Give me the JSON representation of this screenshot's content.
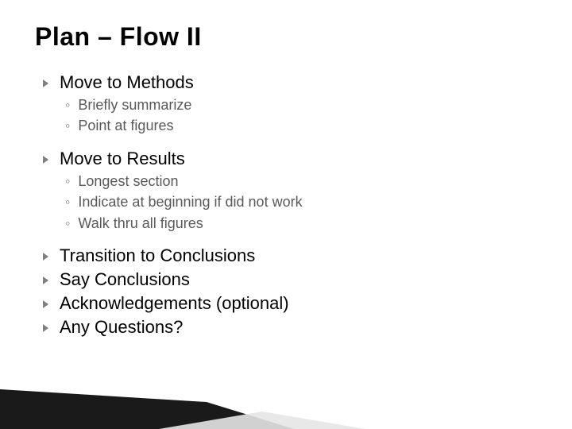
{
  "title": "Plan – Flow II",
  "items": [
    {
      "text": "Move to Methods",
      "subs": [
        "Briefly summarize",
        "Point at figures"
      ]
    },
    {
      "text": "Move to Results",
      "subs": [
        "Longest section",
        "Indicate at beginning if did not work",
        "Walk thru all figures"
      ]
    },
    {
      "text": "Transition to Conclusions",
      "subs": []
    },
    {
      "text": "Say Conclusions",
      "subs": []
    },
    {
      "text": "Acknowledgements (optional)",
      "subs": []
    },
    {
      "text": "Any Questions?",
      "subs": []
    }
  ],
  "style": {
    "title_fontsize": 32,
    "title_color": "#000000",
    "top_fontsize": 22,
    "top_color": "#000000",
    "sub_fontsize": 18,
    "sub_color": "#595959",
    "bullet_color": "#808080",
    "background": "#ffffff",
    "decor_dark": "#1a1a1a",
    "decor_light": "#e6e6e6"
  }
}
